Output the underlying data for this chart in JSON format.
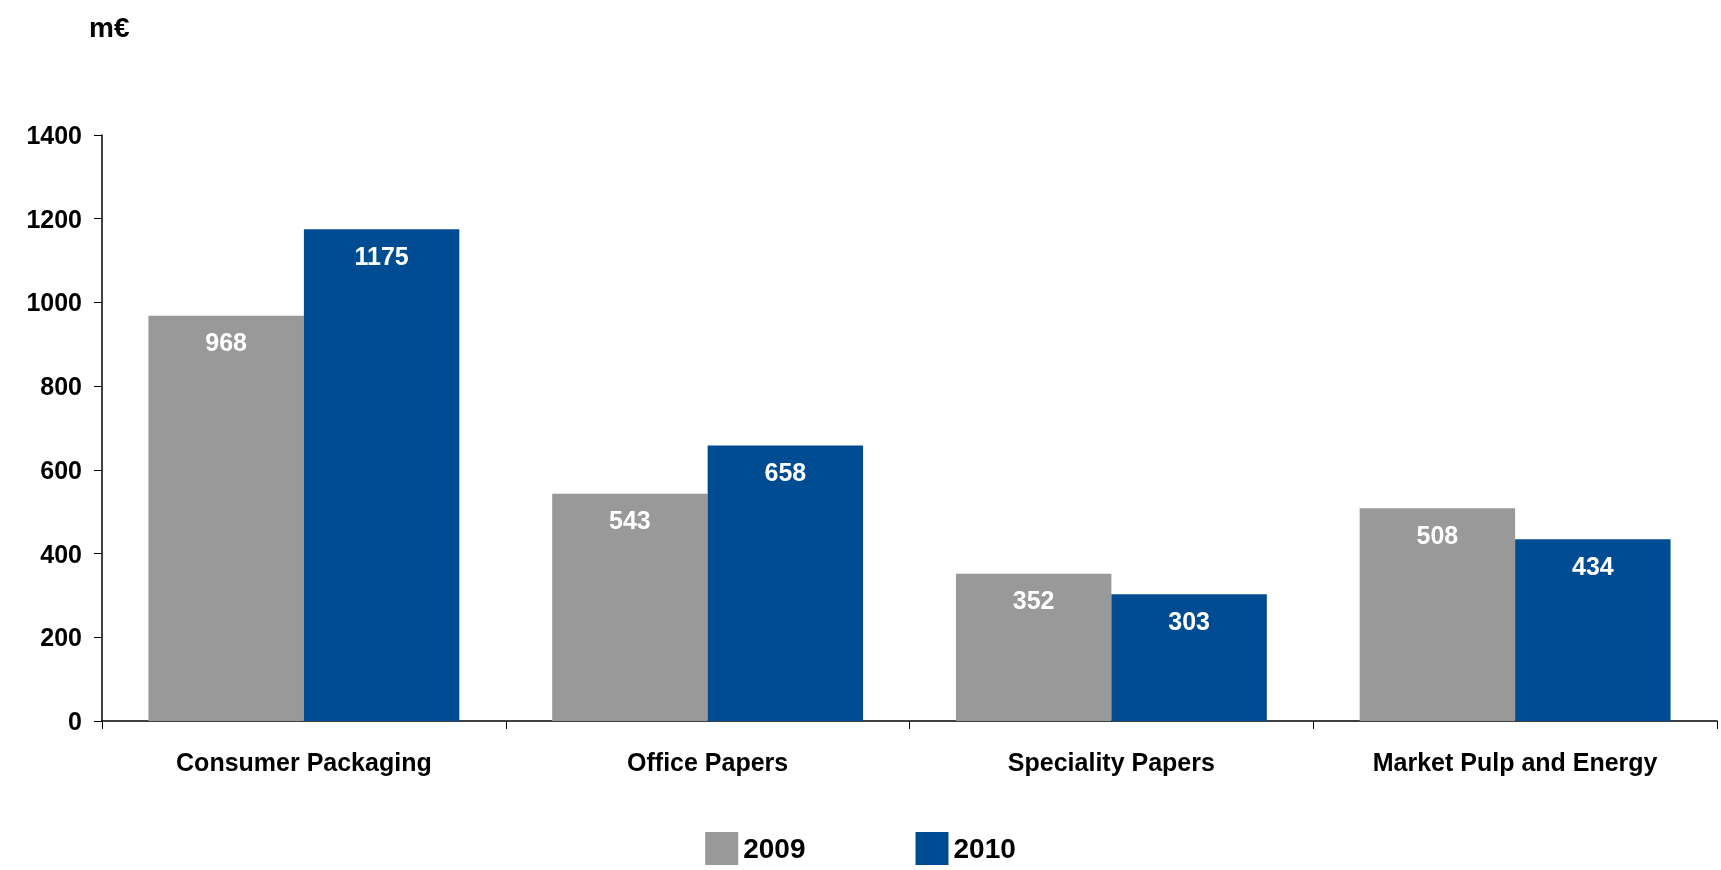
{
  "chart_data": {
    "type": "bar",
    "ylabel": "m€",
    "categories": [
      "Consumer Packaging",
      "Office Papers",
      "Speciality Papers",
      "Market Pulp and Energy"
    ],
    "series": [
      {
        "name": "2009",
        "color": "#999999",
        "values": [
          968,
          543,
          352,
          508
        ]
      },
      {
        "name": "2010",
        "color": "#004c93",
        "values": [
          1175,
          658,
          303,
          434
        ]
      }
    ],
    "ylim": [
      0,
      1400
    ],
    "yticks": [
      0,
      200,
      400,
      600,
      800,
      1000,
      1200,
      1400
    ],
    "grid": false,
    "legend": "bottom",
    "data_labels": true
  }
}
